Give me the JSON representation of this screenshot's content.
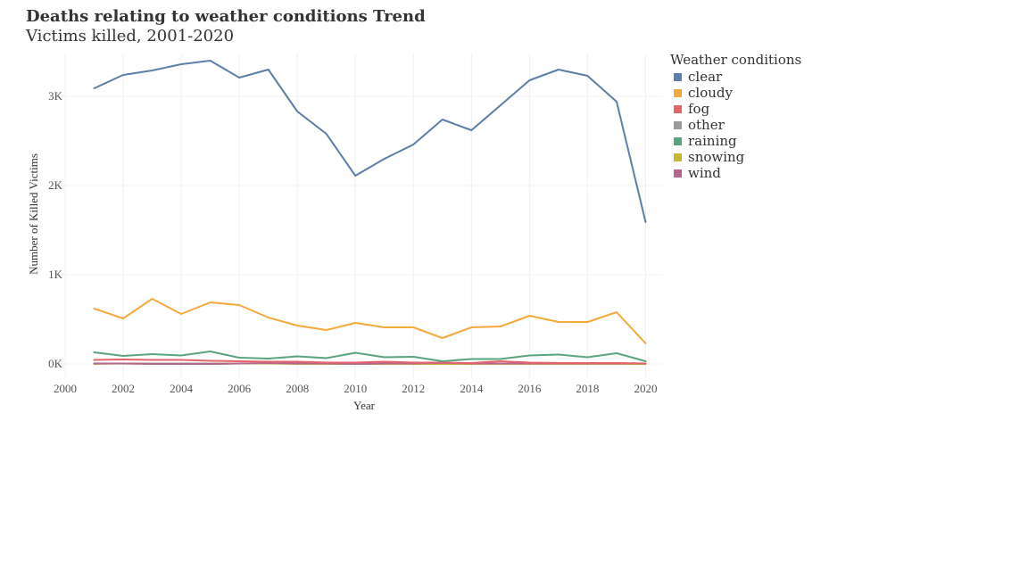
{
  "chart_data": {
    "type": "line",
    "title": "Deaths relating to weather conditions Trend",
    "subtitle": "Victims killed, 2001-2020",
    "xlabel": "Year",
    "ylabel": "Number of Killed Victims",
    "x": [
      2001,
      2002,
      2003,
      2004,
      2005,
      2006,
      2007,
      2008,
      2009,
      2010,
      2011,
      2012,
      2013,
      2014,
      2015,
      2016,
      2017,
      2018,
      2019,
      2020
    ],
    "xlim": [
      2000,
      2020.6
    ],
    "ylim": [
      -150,
      3480
    ],
    "x_ticks": [
      2000,
      2002,
      2004,
      2006,
      2008,
      2010,
      2012,
      2014,
      2016,
      2018,
      2020
    ],
    "x_tick_labels": [
      "2000",
      "2002",
      "2004",
      "2006",
      "2008",
      "2010",
      "2012",
      "2014",
      "2016",
      "2018",
      "2020"
    ],
    "y_ticks": [
      0,
      1000,
      2000,
      3000
    ],
    "y_tick_labels": [
      "0K",
      "1K",
      "2K",
      "3K"
    ],
    "grid": true,
    "legend_title": "Weather conditions",
    "legend_position": "right",
    "series": [
      {
        "name": "clear",
        "color": "#5B7FA8",
        "values": [
          3090,
          3240,
          3290,
          3360,
          3400,
          3210,
          3300,
          2830,
          2580,
          2110,
          2300,
          2460,
          2740,
          2620,
          2900,
          3180,
          3300,
          3230,
          2940,
          1590
        ]
      },
      {
        "name": "cloudy",
        "color": "#F5A93B",
        "values": [
          620,
          510,
          730,
          560,
          690,
          660,
          520,
          430,
          380,
          460,
          410,
          410,
          290,
          410,
          420,
          540,
          470,
          470,
          580,
          230
        ]
      },
      {
        "name": "fog",
        "color": "#E5636A",
        "values": [
          45,
          50,
          45,
          45,
          35,
          30,
          25,
          25,
          15,
          15,
          25,
          15,
          15,
          10,
          30,
          15,
          10,
          10,
          10,
          5
        ]
      },
      {
        "name": "other",
        "color": "#999999",
        "values": [
          5,
          5,
          5,
          5,
          5,
          5,
          5,
          5,
          5,
          5,
          5,
          5,
          5,
          5,
          5,
          5,
          5,
          5,
          5,
          5
        ]
      },
      {
        "name": "raining",
        "color": "#5AA37F",
        "values": [
          130,
          90,
          110,
          95,
          140,
          70,
          60,
          85,
          65,
          125,
          75,
          80,
          30,
          55,
          55,
          95,
          105,
          75,
          120,
          30
        ]
      },
      {
        "name": "snowing",
        "color": "#C7B82E",
        "values": [
          0,
          5,
          0,
          0,
          0,
          5,
          5,
          0,
          0,
          0,
          0,
          0,
          0,
          0,
          0,
          0,
          0,
          0,
          0,
          0
        ]
      },
      {
        "name": "wind",
        "color": "#B5668F",
        "values": [
          5,
          5,
          0,
          0,
          0,
          5,
          10,
          5,
          5,
          0,
          5,
          5,
          10,
          5,
          5,
          5,
          5,
          5,
          5,
          5
        ]
      }
    ]
  }
}
